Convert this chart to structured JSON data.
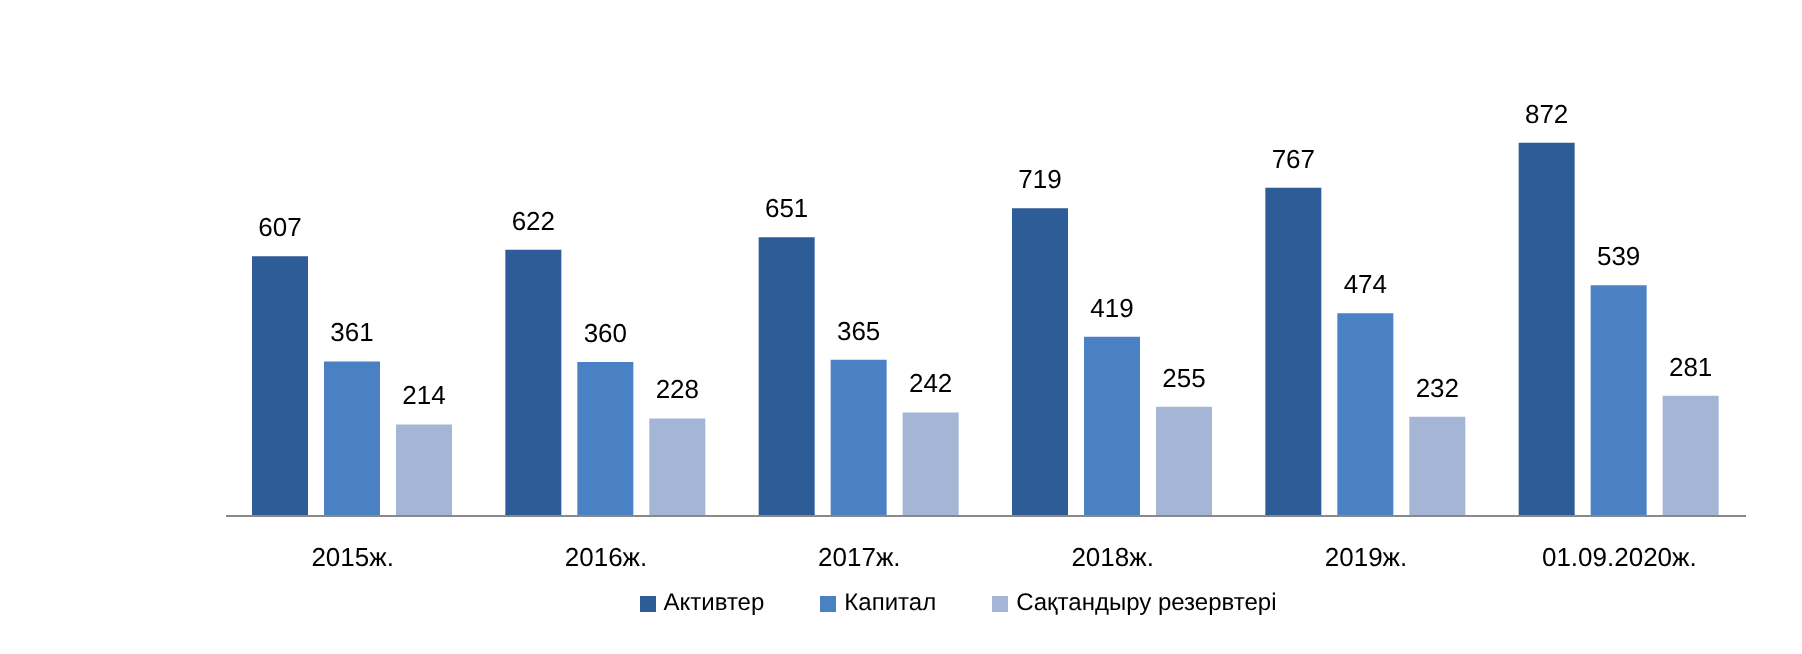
{
  "chart_data": {
    "type": "bar",
    "categories": [
      "2015ж.",
      "2016ж.",
      "2017ж.",
      "2018ж.",
      "2019ж.",
      "01.09.2020ж."
    ],
    "series": [
      {
        "name": "Активтер",
        "color": "#2e5c96",
        "values": [
          607,
          622,
          651,
          719,
          767,
          872
        ]
      },
      {
        "name": "Капитал",
        "color": "#4a80c4",
        "values": [
          361,
          360,
          365,
          419,
          474,
          539
        ]
      },
      {
        "name": "Сақтандыру резервтері",
        "color": "#a4b5d6",
        "values": [
          214,
          228,
          242,
          255,
          232,
          281
        ]
      }
    ],
    "data_labels": true,
    "legend": "bottom",
    "grid": false,
    "tick_labels": "x"
  }
}
